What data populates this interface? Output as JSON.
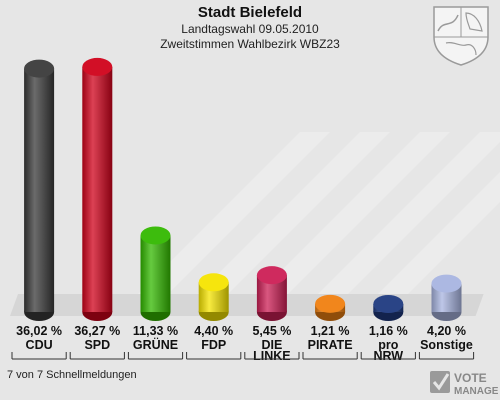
{
  "header": {
    "title": "Stadt Bielefeld",
    "subtitle1": "Landtagswahl 09.05.2010",
    "subtitle2": "Zweitstimmen Wahlbezirk WBZ23"
  },
  "footer": {
    "status": "7 von 7 Schnellmeldungen"
  },
  "logo": {
    "text1": "VOTE",
    "text2": "MANAGER"
  },
  "chart_data": {
    "type": "bar",
    "categories": [
      "CDU",
      "SPD",
      "GRÜNE",
      "FDP",
      "DIE LINKE",
      "PIRATE",
      "pro NRW",
      "Sonstige"
    ],
    "values": [
      36.02,
      36.27,
      11.33,
      4.4,
      5.45,
      1.21,
      1.16,
      4.2
    ],
    "value_labels": [
      "36,02 %",
      "36,27 %",
      "11,33 %",
      "4,40 %",
      "5,45 %",
      "1,21 %",
      "1,16 %",
      "4,20 %"
    ],
    "colors": [
      "#3a3a3a",
      "#d0021b",
      "#33b800",
      "#f5e400",
      "#cc1f55",
      "#f08010",
      "#1f3a80",
      "#a8b4e0"
    ],
    "ylim": [
      0,
      37
    ],
    "grid": false,
    "legend": "none"
  }
}
